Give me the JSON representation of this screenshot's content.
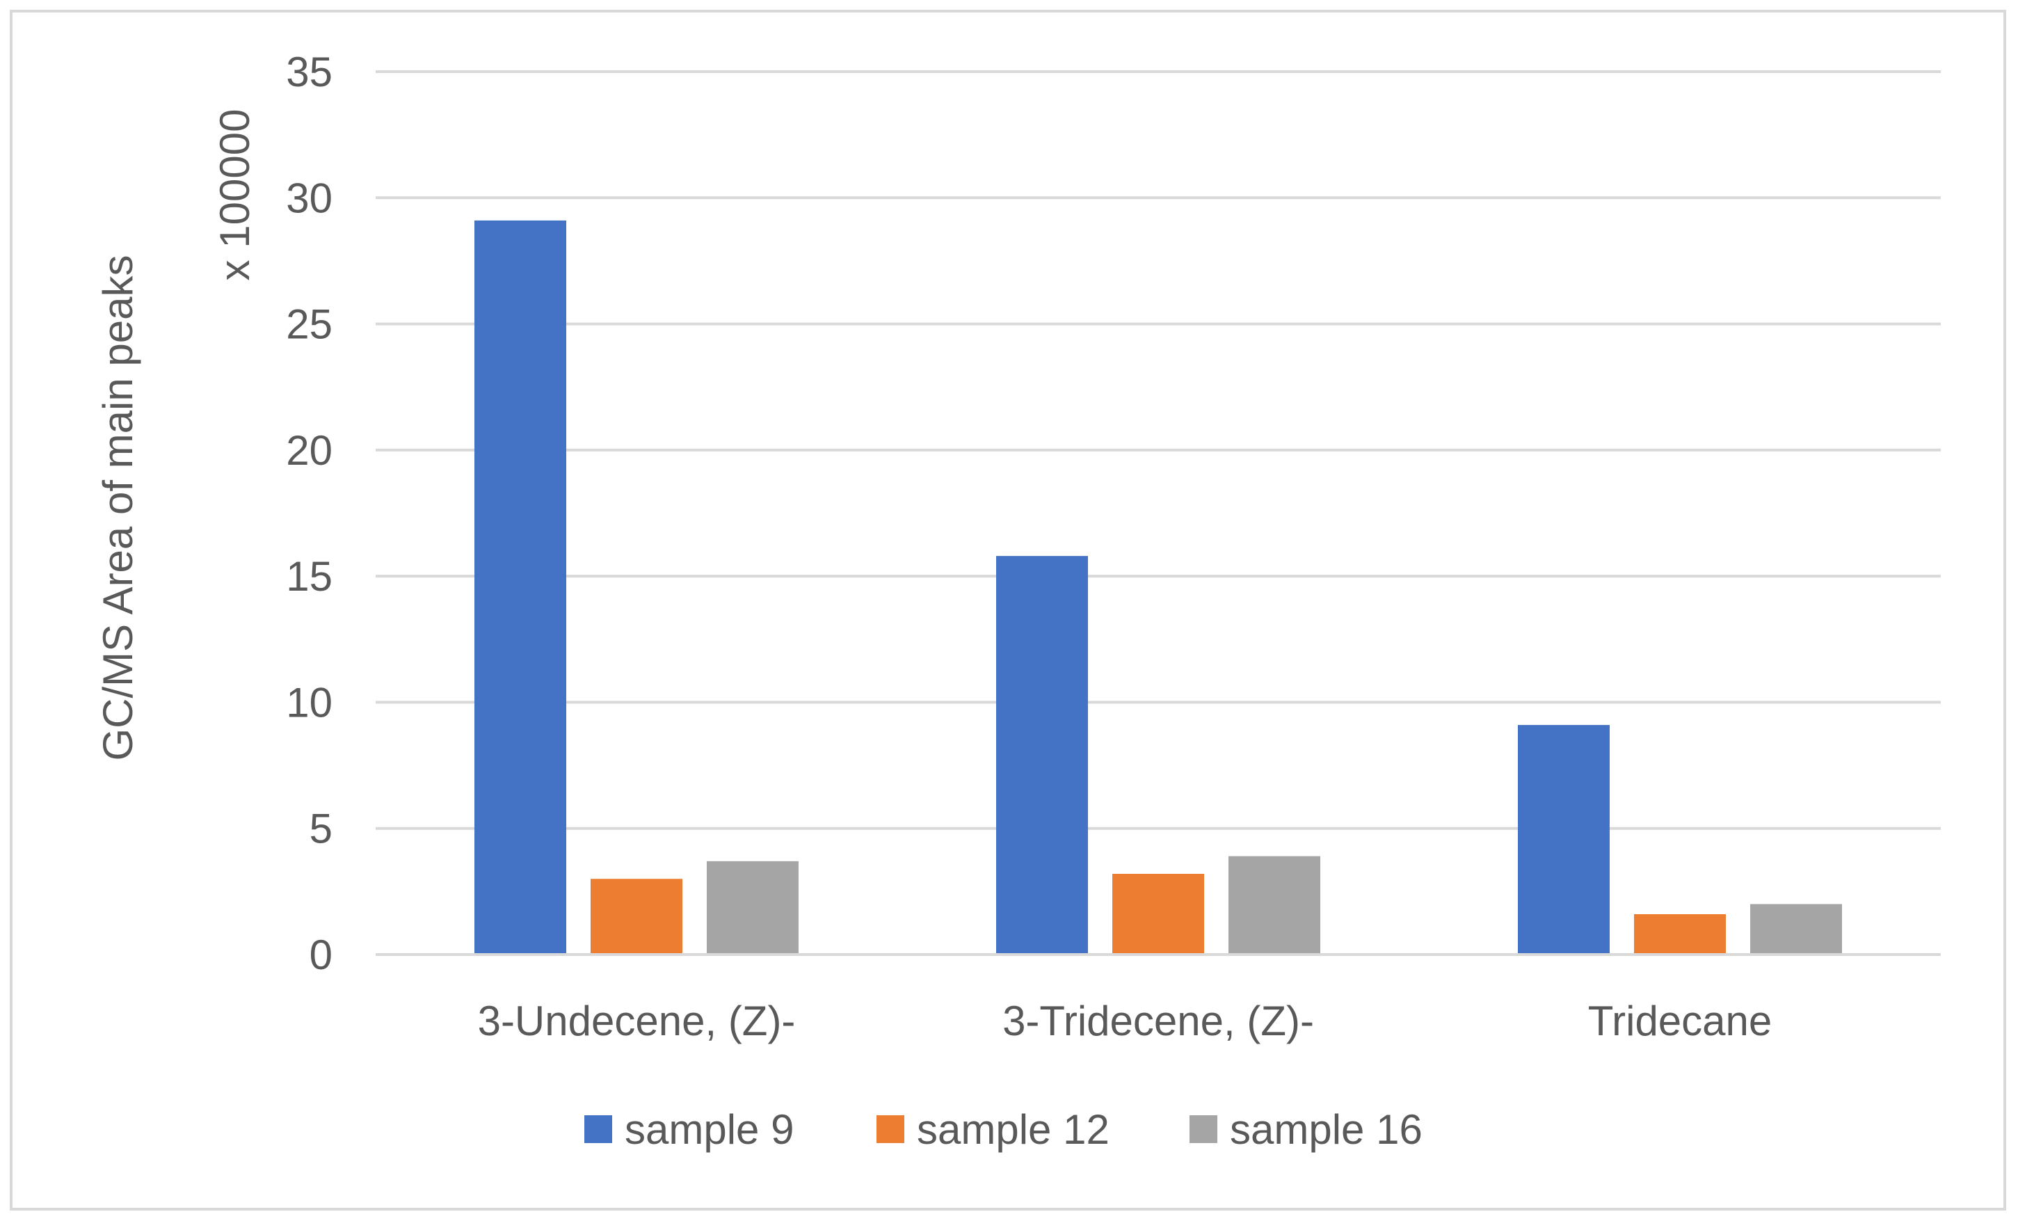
{
  "chart_data": {
    "type": "bar",
    "title": "",
    "xlabel": "",
    "ylabel": "GC/MS Area of main peaks",
    "ylabel_secondary": "x 100000",
    "ylim": [
      0,
      35
    ],
    "yticks": [
      0,
      5,
      10,
      15,
      20,
      25,
      30,
      35
    ],
    "grid": true,
    "legend": "bottom",
    "categories": [
      "3-Undecene, (Z)-",
      "3-Tridecene, (Z)-",
      "Tridecane"
    ],
    "series": [
      {
        "name": "sample 9",
        "color": "#4472C4",
        "values": [
          29.1,
          15.8,
          9.1
        ]
      },
      {
        "name": "sample 12",
        "color": "#ED7D31",
        "values": [
          3.0,
          3.2,
          1.6
        ]
      },
      {
        "name": "sample 16",
        "color": "#A5A5A5",
        "values": [
          3.7,
          3.9,
          2.0
        ]
      }
    ]
  }
}
